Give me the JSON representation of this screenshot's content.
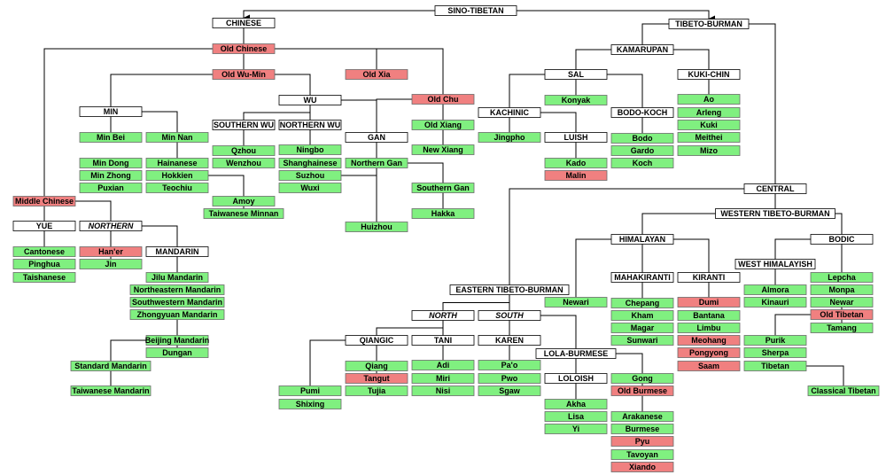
{
  "nodes": [
    {
      "label": "SINO-TIBETAN"
    },
    {
      "label": "CHINESE"
    },
    {
      "label": "TIBETO-BURMAN"
    },
    {
      "label": "Old Chinese"
    },
    {
      "label": "Old Wu-Min"
    },
    {
      "label": "Old Xia"
    },
    {
      "label": "WU"
    },
    {
      "label": "Old Chu"
    },
    {
      "label": "MIN"
    },
    {
      "label": "SOUTHERN WU"
    },
    {
      "label": "NORTHERN WU"
    },
    {
      "label": "Old Xiang"
    },
    {
      "label": "Min Bei"
    },
    {
      "label": "Min Nan"
    },
    {
      "label": "GAN"
    },
    {
      "label": "Qzhou"
    },
    {
      "label": "Ningbo"
    },
    {
      "label": "New Xiang"
    },
    {
      "label": "Min Dong"
    },
    {
      "label": "Hainanese"
    },
    {
      "label": "Wenzhou"
    },
    {
      "label": "Shanghainese"
    },
    {
      "label": "Northern Gan"
    },
    {
      "label": "Min Zhong"
    },
    {
      "label": "Hokkien"
    },
    {
      "label": "Suzhou"
    },
    {
      "label": "Puxian"
    },
    {
      "label": "Teochiu"
    },
    {
      "label": "Wuxi"
    },
    {
      "label": "Southern Gan"
    },
    {
      "label": "Middle Chinese"
    },
    {
      "label": "Amoy"
    },
    {
      "label": "YUE"
    },
    {
      "label": "NORTHERN"
    },
    {
      "label": "Taiwanese Minnan"
    },
    {
      "label": "Hakka"
    },
    {
      "label": "Huizhou"
    },
    {
      "label": "Cantonese"
    },
    {
      "label": "Han'er"
    },
    {
      "label": "MANDARIN"
    },
    {
      "label": "Pinghua"
    },
    {
      "label": "Jin"
    },
    {
      "label": "Taishanese"
    },
    {
      "label": "Jilu Mandarin"
    },
    {
      "label": "Northeastern Mandarin"
    },
    {
      "label": "Southwestern Mandarin"
    },
    {
      "label": "Zhongyuan Mandarin"
    },
    {
      "label": "Beijing Mandarin"
    },
    {
      "label": "Dungan"
    },
    {
      "label": "Standard Mandarin"
    },
    {
      "label": "Taiwanese Mandarin"
    },
    {
      "label": "KAMARUPAN"
    },
    {
      "label": "SAL"
    },
    {
      "label": "KUKI-CHIN"
    },
    {
      "label": "Konyak"
    },
    {
      "label": "Ao"
    },
    {
      "label": "KACHINIC"
    },
    {
      "label": "BODO-KOCH"
    },
    {
      "label": "Arleng"
    },
    {
      "label": "Kuki"
    },
    {
      "label": "Jingpho"
    },
    {
      "label": "LUISH"
    },
    {
      "label": "Bodo"
    },
    {
      "label": "Meithei"
    },
    {
      "label": "Gardo"
    },
    {
      "label": "Mizo"
    },
    {
      "label": "Kado"
    },
    {
      "label": "Koch"
    },
    {
      "label": "Malin"
    },
    {
      "label": "CENTRAL"
    },
    {
      "label": "WESTERN TIBETO-BURMAN"
    },
    {
      "label": "HIMALAYAN"
    },
    {
      "label": "BODIC"
    },
    {
      "label": "WEST HIMALAYISH"
    },
    {
      "label": "MAHAKIRANTI"
    },
    {
      "label": "KIRANTI"
    },
    {
      "label": "Lepcha"
    },
    {
      "label": "EASTERN TIBETO-BURMAN"
    },
    {
      "label": "Almora"
    },
    {
      "label": "Monpa"
    },
    {
      "label": "Newari"
    },
    {
      "label": "Chepang"
    },
    {
      "label": "Dumi"
    },
    {
      "label": "Kinauri"
    },
    {
      "label": "Newar"
    },
    {
      "label": "NORTH"
    },
    {
      "label": "SOUTH"
    },
    {
      "label": "Kham"
    },
    {
      "label": "Bantana"
    },
    {
      "label": "Old Tibetan"
    },
    {
      "label": "Magar"
    },
    {
      "label": "Limbu"
    },
    {
      "label": "Tamang"
    },
    {
      "label": "QIANGIC"
    },
    {
      "label": "TANI"
    },
    {
      "label": "KAREN"
    },
    {
      "label": "Sunwari"
    },
    {
      "label": "Meohang"
    },
    {
      "label": "Purik"
    },
    {
      "label": "LOLA-BURMESE"
    },
    {
      "label": "Pongyong"
    },
    {
      "label": "Sherpa"
    },
    {
      "label": "Qiang"
    },
    {
      "label": "Adi"
    },
    {
      "label": "Pa'o"
    },
    {
      "label": "Saam"
    },
    {
      "label": "Tibetan"
    },
    {
      "label": "Tangut"
    },
    {
      "label": "Miri"
    },
    {
      "label": "Pwo"
    },
    {
      "label": "LOLOISH"
    },
    {
      "label": "Gong"
    },
    {
      "label": "Pumi"
    },
    {
      "label": "Tujia"
    },
    {
      "label": "Nisi"
    },
    {
      "label": "Sgaw"
    },
    {
      "label": "Old Burmese"
    },
    {
      "label": "Classical Tibetan"
    },
    {
      "label": "Akha"
    },
    {
      "label": "Shixing"
    },
    {
      "label": "Lisa"
    },
    {
      "label": "Arakanese"
    },
    {
      "label": "Yi"
    },
    {
      "label": "Burmese"
    },
    {
      "label": "Pyu"
    },
    {
      "label": "Tavoyan"
    },
    {
      "label": "Xiando"
    }
  ]
}
